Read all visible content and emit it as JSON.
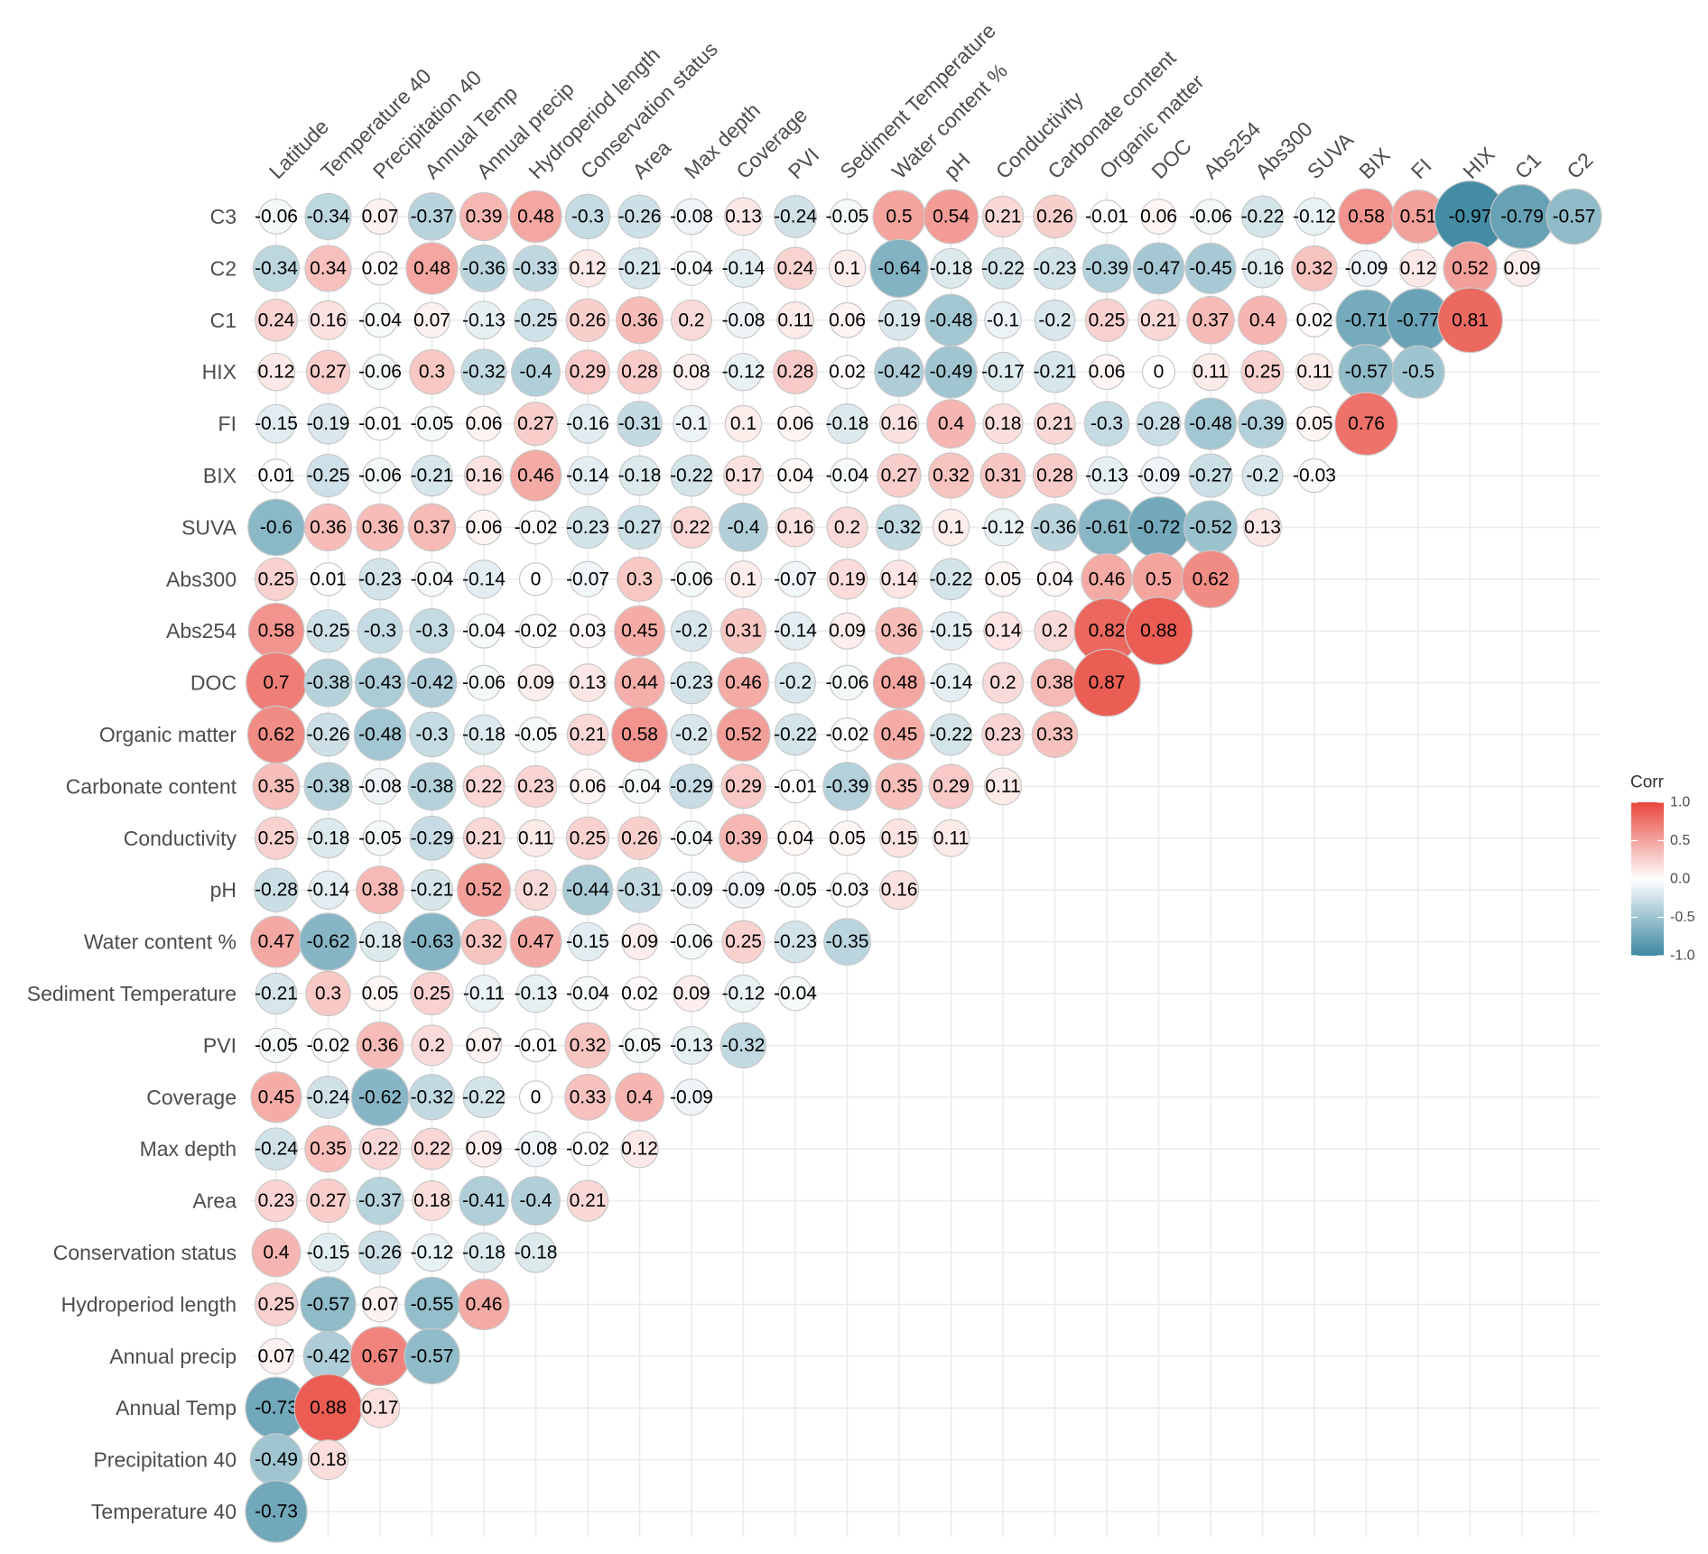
{
  "chart_data": {
    "type": "corrplot",
    "x_categories": [
      "Latitude",
      "Temperature 40",
      "Precipitation 40",
      "Annual Temp",
      "Annual precip",
      "Hydroperiod length",
      "Conservation status",
      "Area",
      "Max depth",
      "Coverage",
      "PVI",
      "Sediment Temperature",
      "Water content %",
      "pH",
      "Conductivity",
      "Carbonate content",
      "Organic matter",
      "DOC",
      "Abs254",
      "Abs300",
      "SUVA",
      "BIX",
      "FI",
      "HIX",
      "C1",
      "C2"
    ],
    "y_categories": [
      "C3",
      "C2",
      "C1",
      "HIX",
      "FI",
      "BIX",
      "SUVA",
      "Abs300",
      "Abs254",
      "DOC",
      "Organic matter",
      "Carbonate content",
      "Conductivity",
      "pH",
      "Water content %",
      "Sediment Temperature",
      "PVI",
      "Coverage",
      "Max depth",
      "Area",
      "Conservation status",
      "Hydroperiod length",
      "Annual precip",
      "Annual Temp",
      "Precipitation 40",
      "Temperature 40"
    ],
    "values": [
      [
        -0.06,
        -0.34,
        0.07,
        -0.37,
        0.39,
        0.48,
        -0.3,
        -0.26,
        -0.08,
        0.13,
        -0.24,
        -0.05,
        0.5,
        0.54,
        0.21,
        0.26,
        -0.01,
        0.06,
        -0.06,
        -0.22,
        -0.12,
        0.58,
        0.51,
        -0.97,
        -0.79,
        -0.57
      ],
      [
        -0.34,
        0.34,
        0.02,
        0.48,
        -0.36,
        -0.33,
        0.12,
        -0.21,
        -0.04,
        -0.14,
        0.24,
        0.1,
        -0.64,
        -0.18,
        -0.22,
        -0.23,
        -0.39,
        -0.47,
        -0.45,
        -0.16,
        0.32,
        -0.09,
        0.12,
        0.52,
        0.09
      ],
      [
        0.24,
        0.16,
        -0.04,
        0.07,
        -0.13,
        -0.25,
        0.26,
        0.36,
        0.2,
        -0.08,
        0.11,
        0.06,
        -0.19,
        -0.48,
        -0.1,
        -0.2,
        0.25,
        0.21,
        0.37,
        0.4,
        0.02,
        -0.71,
        -0.77,
        0.81
      ],
      [
        0.12,
        0.27,
        -0.06,
        0.3,
        -0.32,
        -0.4,
        0.29,
        0.28,
        0.08,
        -0.12,
        0.28,
        0.02,
        -0.42,
        -0.49,
        -0.17,
        -0.21,
        0.06,
        0,
        0.11,
        0.25,
        0.11,
        -0.57,
        -0.5
      ],
      [
        -0.15,
        -0.19,
        -0.01,
        -0.05,
        0.06,
        0.27,
        -0.16,
        -0.31,
        -0.1,
        0.1,
        0.06,
        -0.18,
        0.16,
        0.4,
        0.18,
        0.21,
        -0.3,
        -0.28,
        -0.48,
        -0.39,
        0.05,
        0.76
      ],
      [
        0.01,
        -0.25,
        -0.06,
        -0.21,
        0.16,
        0.46,
        -0.14,
        -0.18,
        -0.22,
        0.17,
        0.04,
        -0.04,
        0.27,
        0.32,
        0.31,
        0.28,
        -0.13,
        -0.09,
        -0.27,
        -0.2,
        -0.03
      ],
      [
        -0.6,
        0.36,
        0.36,
        0.37,
        0.06,
        -0.02,
        -0.23,
        -0.27,
        0.22,
        -0.4,
        0.16,
        0.2,
        -0.32,
        0.1,
        -0.12,
        -0.36,
        -0.61,
        -0.72,
        -0.52,
        0.13
      ],
      [
        0.25,
        0.01,
        -0.23,
        -0.04,
        -0.14,
        0,
        -0.07,
        0.3,
        -0.06,
        0.1,
        -0.07,
        0.19,
        0.14,
        -0.22,
        0.05,
        0.04,
        0.46,
        0.5,
        0.62
      ],
      [
        0.58,
        -0.25,
        -0.3,
        -0.3,
        -0.04,
        -0.02,
        0.03,
        0.45,
        -0.2,
        0.31,
        -0.14,
        0.09,
        0.36,
        -0.15,
        0.14,
        0.2,
        0.82,
        0.88
      ],
      [
        0.7,
        -0.38,
        -0.43,
        -0.42,
        -0.06,
        0.09,
        0.13,
        0.44,
        -0.23,
        0.46,
        -0.2,
        -0.06,
        0.48,
        -0.14,
        0.2,
        0.38,
        0.87
      ],
      [
        0.62,
        -0.26,
        -0.48,
        -0.3,
        -0.18,
        -0.05,
        0.21,
        0.58,
        -0.2,
        0.52,
        -0.22,
        -0.02,
        0.45,
        -0.22,
        0.23,
        0.33
      ],
      [
        0.35,
        -0.38,
        -0.08,
        -0.38,
        0.22,
        0.23,
        0.06,
        -0.04,
        -0.29,
        0.29,
        -0.01,
        -0.39,
        0.35,
        0.29,
        0.11
      ],
      [
        0.25,
        -0.18,
        -0.05,
        -0.29,
        0.21,
        0.11,
        0.25,
        0.26,
        -0.04,
        0.39,
        0.04,
        0.05,
        0.15,
        0.11
      ],
      [
        -0.28,
        -0.14,
        0.38,
        -0.21,
        0.52,
        0.2,
        -0.44,
        -0.31,
        -0.09,
        -0.09,
        -0.05,
        -0.03,
        0.16
      ],
      [
        0.47,
        -0.62,
        -0.18,
        -0.63,
        0.32,
        0.47,
        -0.15,
        0.09,
        -0.06,
        0.25,
        -0.23,
        -0.35
      ],
      [
        -0.21,
        0.3,
        0.05,
        0.25,
        -0.11,
        -0.13,
        -0.04,
        0.02,
        0.09,
        -0.12,
        -0.04
      ],
      [
        -0.05,
        -0.02,
        0.36,
        0.2,
        0.07,
        -0.01,
        0.32,
        -0.05,
        -0.13,
        -0.32
      ],
      [
        0.45,
        -0.24,
        -0.62,
        -0.32,
        -0.22,
        0,
        0.33,
        0.4,
        -0.09
      ],
      [
        -0.24,
        0.35,
        0.22,
        0.22,
        0.09,
        -0.08,
        -0.02,
        0.12
      ],
      [
        0.23,
        0.27,
        -0.37,
        0.18,
        -0.41,
        -0.4,
        0.21
      ],
      [
        0.4,
        -0.15,
        -0.26,
        -0.12,
        -0.18,
        -0.18
      ],
      [
        0.25,
        -0.57,
        0.07,
        -0.55,
        0.46
      ],
      [
        0.07,
        -0.42,
        0.67,
        -0.57
      ],
      [
        -0.73,
        0.88,
        0.17
      ],
      [
        -0.49,
        0.18
      ],
      [
        -0.73
      ]
    ],
    "legend_title": "Corr",
    "colorbar_lim": [
      -1,
      1
    ],
    "colorbar_ticks": [
      {
        "value": 1,
        "label": "1.0"
      },
      0.5,
      {
        "value": 0,
        "label": "0.0"
      },
      -0.5,
      {
        "value": -1,
        "label": "-1.0"
      }
    ],
    "colors": {
      "low": "#3d88a1",
      "mid": "#ffffff",
      "high": "#e8463b"
    },
    "grid": true
  }
}
